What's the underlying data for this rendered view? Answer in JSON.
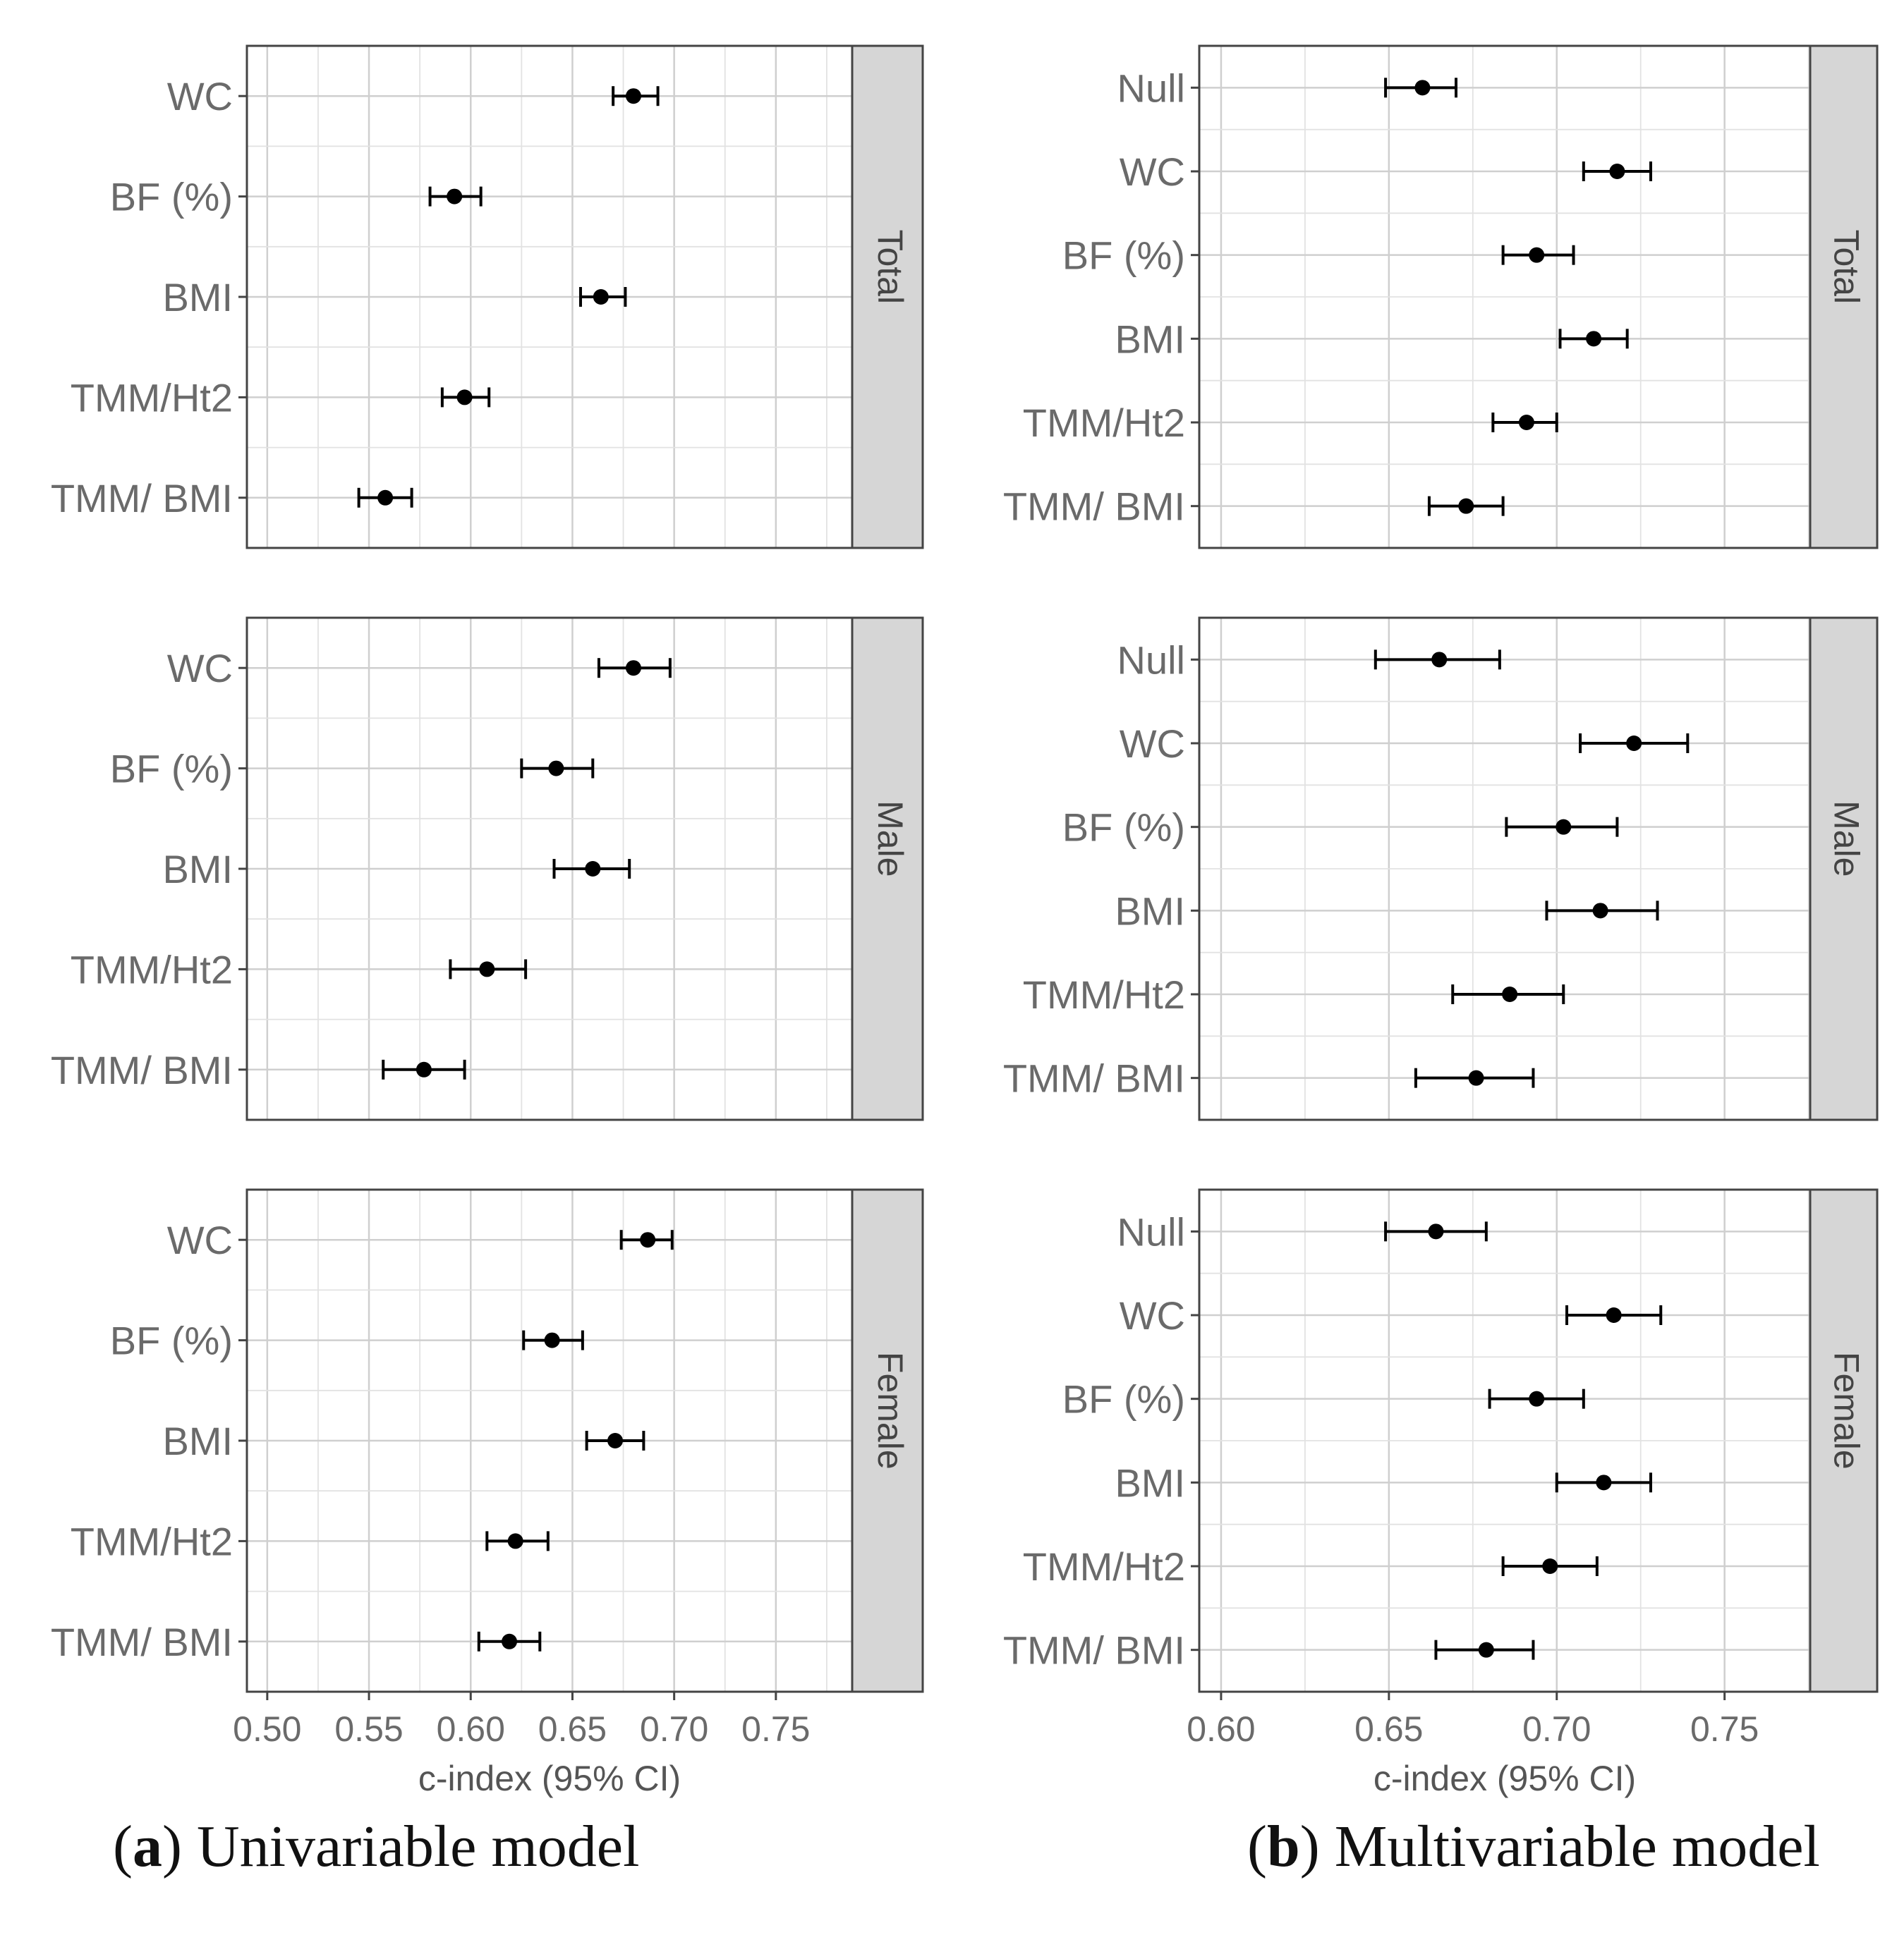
{
  "chart_data": [
    {
      "type": "errorbar",
      "title": "Univariable model",
      "caption_letter": "a",
      "xlabel": "c-index (95% CI)",
      "xlim": [
        0.49,
        0.7875
      ],
      "xticks": [
        "0.50",
        "0.55",
        "0.60",
        "0.65",
        "0.70",
        "0.75"
      ],
      "xtick_values": [
        0.5,
        0.55,
        0.6,
        0.65,
        0.7,
        0.75
      ],
      "facets": [
        {
          "strip": "Total",
          "categories": [
            "WC",
            "BF (%)",
            "BMI",
            "TMM/Ht2",
            "TMM/ BMI"
          ],
          "estimate": [
            0.68,
            0.592,
            0.664,
            0.597,
            0.558
          ],
          "lower": [
            0.67,
            0.58,
            0.654,
            0.586,
            0.545
          ],
          "upper": [
            0.692,
            0.605,
            0.676,
            0.609,
            0.571
          ]
        },
        {
          "strip": "Male",
          "categories": [
            "WC",
            "BF (%)",
            "BMI",
            "TMM/Ht2",
            "TMM/ BMI"
          ],
          "estimate": [
            0.68,
            0.642,
            0.66,
            0.608,
            0.577
          ],
          "lower": [
            0.663,
            0.625,
            0.641,
            0.59,
            0.557
          ],
          "upper": [
            0.698,
            0.66,
            0.678,
            0.627,
            0.597
          ]
        },
        {
          "strip": "Female",
          "categories": [
            "WC",
            "BF (%)",
            "BMI",
            "TMM/Ht2",
            "TMM/ BMI"
          ],
          "estimate": [
            0.687,
            0.64,
            0.671,
            0.622,
            0.619
          ],
          "lower": [
            0.674,
            0.626,
            0.657,
            0.608,
            0.604
          ],
          "upper": [
            0.699,
            0.655,
            0.685,
            0.638,
            0.634
          ]
        }
      ]
    },
    {
      "type": "errorbar",
      "title": "Multivariable model",
      "caption_letter": "b",
      "xlabel": "c-index (95% CI)",
      "xlim": [
        0.5935,
        0.7755
      ],
      "xticks": [
        "0.60",
        "0.65",
        "0.70",
        "0.75"
      ],
      "xtick_values": [
        0.6,
        0.65,
        0.7,
        0.75
      ],
      "facets": [
        {
          "strip": "Total",
          "categories": [
            "Null",
            "WC",
            "BF (%)",
            "BMI",
            "TMM/Ht2",
            "TMM/ BMI"
          ],
          "estimate": [
            0.66,
            0.718,
            0.694,
            0.711,
            0.691,
            0.673
          ],
          "lower": [
            0.649,
            0.708,
            0.684,
            0.701,
            0.681,
            0.662
          ],
          "upper": [
            0.67,
            0.728,
            0.705,
            0.721,
            0.7,
            0.684
          ]
        },
        {
          "strip": "Male",
          "categories": [
            "Null",
            "WC",
            "BF (%)",
            "BMI",
            "TMM/Ht2",
            "TMM/ BMI"
          ],
          "estimate": [
            0.665,
            0.723,
            0.702,
            0.713,
            0.686,
            0.676
          ],
          "lower": [
            0.646,
            0.707,
            0.685,
            0.697,
            0.669,
            0.658
          ],
          "upper": [
            0.683,
            0.739,
            0.718,
            0.73,
            0.702,
            0.693
          ]
        },
        {
          "strip": "Female",
          "categories": [
            "Null",
            "WC",
            "BF (%)",
            "BMI",
            "TMM/Ht2",
            "TMM/ BMI"
          ],
          "estimate": [
            0.664,
            0.717,
            0.694,
            0.714,
            0.698,
            0.679
          ],
          "lower": [
            0.649,
            0.703,
            0.68,
            0.7,
            0.684,
            0.664
          ],
          "upper": [
            0.679,
            0.731,
            0.708,
            0.728,
            0.712,
            0.693
          ]
        }
      ]
    }
  ]
}
